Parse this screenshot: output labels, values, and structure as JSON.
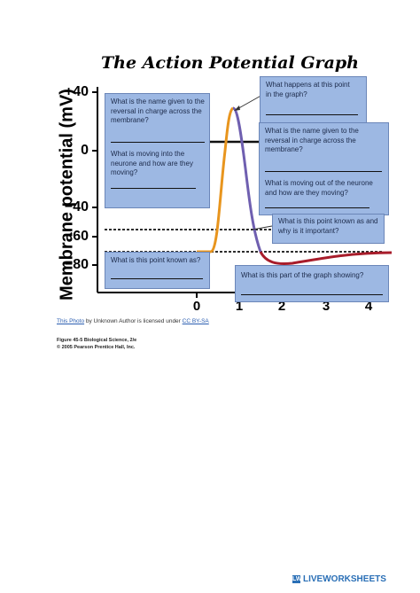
{
  "title": "The Action Potential Graph",
  "y_axis": {
    "label": "Membrane potential (mV)",
    "ticks": [
      "+40",
      "0",
      "−40",
      "−60",
      "−80"
    ]
  },
  "x_axis": {
    "ticks": [
      "0",
      "1",
      "2",
      "3",
      "4"
    ]
  },
  "questions": {
    "q1": "What is the name given to the reversal in charge across the membrane?",
    "q2": "What is moving into the neurone and how are they moving?",
    "q3": "What happens at this point in the graph?",
    "q4": "What is the name given to the reversal in charge across the membrane?",
    "q5": "What is moving out of the neurone and how are they moving?",
    "q6": "What is this point known as and why is it important?",
    "q7": "What is this point known as?",
    "q8": "What is this part of the graph showing?"
  },
  "credit": {
    "link": "This Photo",
    "middle": " by Unknown Author is licensed under ",
    "license": "CC BY-SA"
  },
  "figure_caption": {
    "line1": "Figure 45-5  Biological Science, 2/e",
    "line2": "© 2005 Pearson Prentice Hall, Inc."
  },
  "footer": {
    "badge": "LW",
    "text": "LIVEWORKSHEETS"
  },
  "colors": {
    "depolarization": "#e8951e",
    "repolarization": "#6f5fb0",
    "hyperpolarization": "#a81d2b",
    "box_fill": "#9db8e3"
  }
}
